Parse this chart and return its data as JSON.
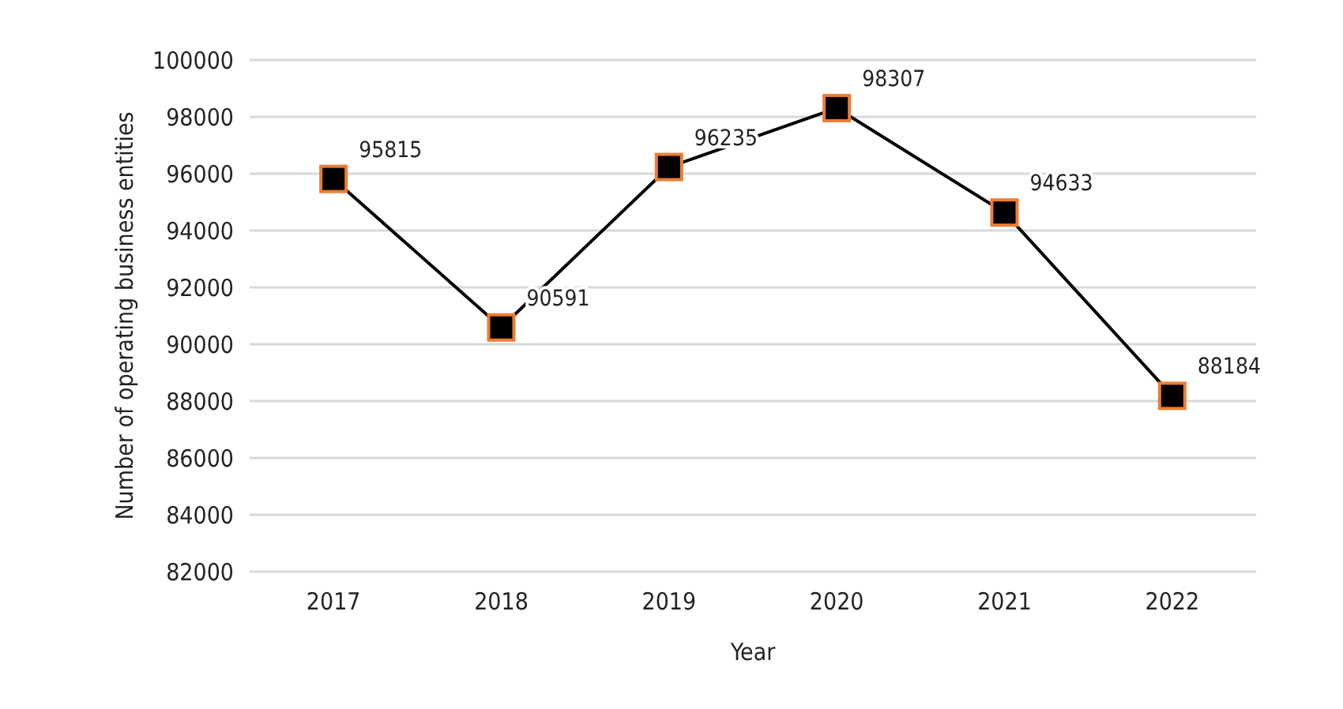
{
  "chart_data": {
    "type": "line",
    "xlabel": "Year",
    "ylabel": "Number of operating business entities",
    "categories": [
      "2017",
      "2018",
      "2019",
      "2020",
      "2021",
      "2022"
    ],
    "series": [
      {
        "color": "#000000",
        "values": [
          95815,
          90591,
          96235,
          98307,
          94633,
          88184
        ]
      }
    ],
    "ylim": [
      82000,
      100000
    ],
    "yticks": [
      82000,
      84000,
      86000,
      88000,
      90000,
      92000,
      94000,
      96000,
      98000,
      100000
    ],
    "grid": "y",
    "marker": "square",
    "line_style": "solid",
    "data_labels": true
  }
}
